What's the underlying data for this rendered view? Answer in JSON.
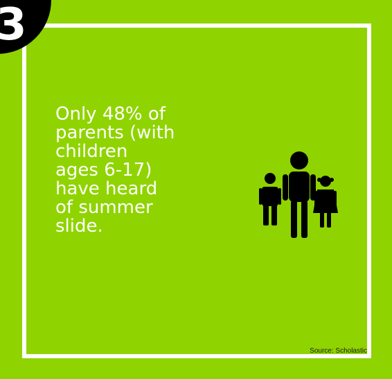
{
  "badge": {
    "number": "3"
  },
  "headline": {
    "lines": [
      "Only 48% of",
      "parents (with",
      "children",
      "ages 6-17)",
      "have heard",
      "of summer",
      "slide."
    ]
  },
  "icon": {
    "name": "family-icon"
  },
  "footer": {
    "source": "Source: Scholastic"
  },
  "colors": {
    "background": "#8fd400",
    "frame": "#ffffff",
    "badge": "#000000",
    "text": "#ffffff"
  }
}
